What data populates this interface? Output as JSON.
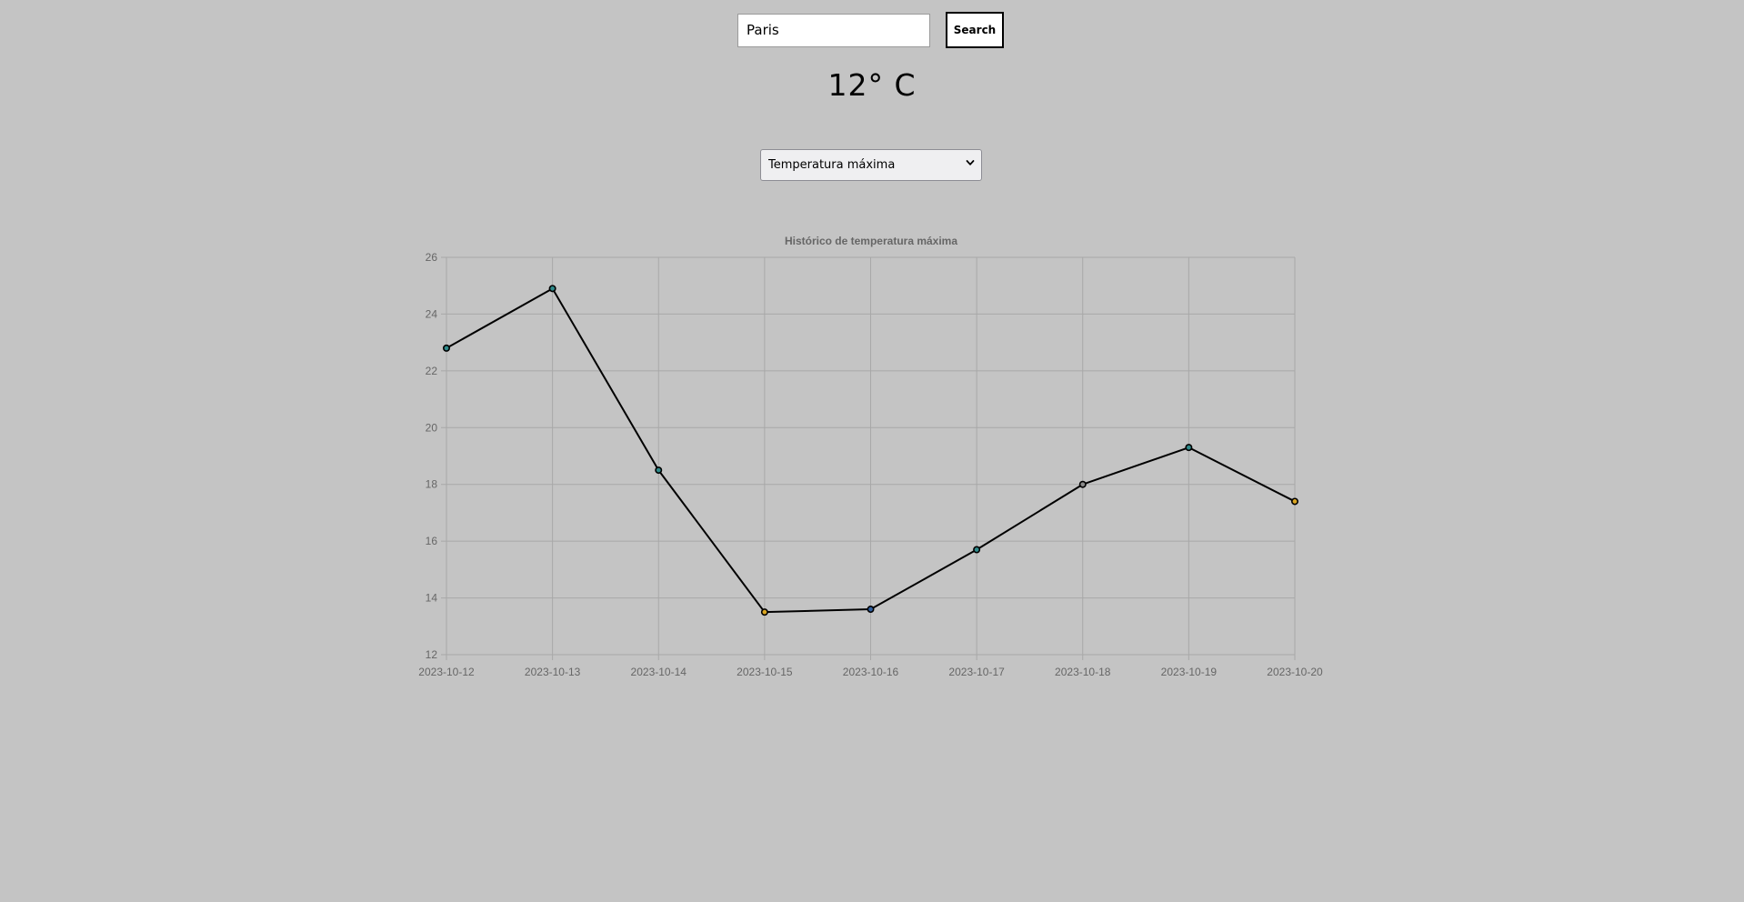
{
  "search": {
    "city_value": "Paris",
    "button_label": "Search"
  },
  "current": {
    "temperature": "12° C"
  },
  "metric_select": {
    "selected": "Temperatura máxima"
  },
  "colors": {
    "background": "#c4c4c4",
    "line": "#000000",
    "grid": "#a8a8a8",
    "label": "#666666"
  },
  "chart_data": {
    "type": "line",
    "title": "Histórico de temperatura máxima",
    "xlabel": "",
    "ylabel": "",
    "x": [
      "2023-10-12",
      "2023-10-13",
      "2023-10-14",
      "2023-10-15",
      "2023-10-16",
      "2023-10-17",
      "2023-10-18",
      "2023-10-19",
      "2023-10-20"
    ],
    "series": [
      {
        "values": [
          22.8,
          24.9,
          18.5,
          13.5,
          13.6,
          15.7,
          18.0,
          19.3,
          17.4
        ],
        "point_colors": [
          "#2f8a8a",
          "#2f8a8a",
          "#2f8a8a",
          "#d9a521",
          "#2f5fa0",
          "#2f8a8a",
          "#8a8a8a",
          "#2f8a8a",
          "#d9a521"
        ]
      }
    ],
    "ylim": [
      12,
      26
    ],
    "yticks": [
      12,
      14,
      16,
      18,
      20,
      22,
      24,
      26
    ],
    "grid": true,
    "legend": "none"
  }
}
